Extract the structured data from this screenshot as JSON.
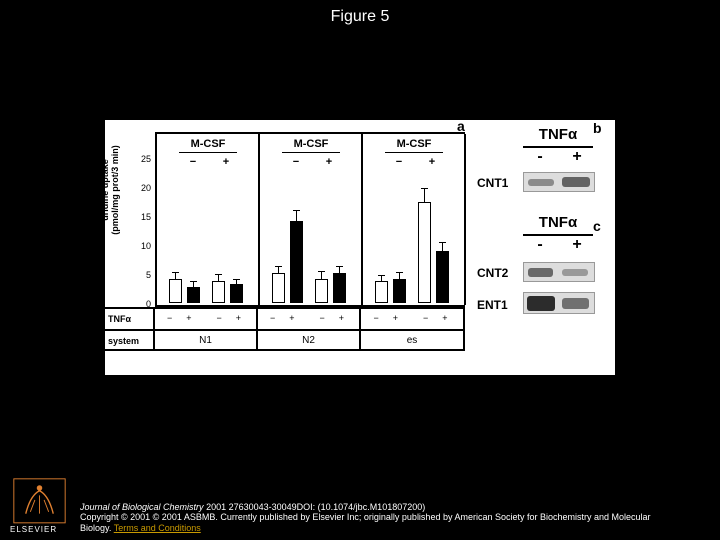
{
  "title": "Figure 5",
  "panel_a": {
    "label": "a",
    "ylabel": "uridine uptake\n(pmol/mg prot/3 min)",
    "ylim": [
      0,
      25
    ],
    "yticks": [
      0,
      5,
      10,
      15,
      20,
      25
    ],
    "groups": [
      {
        "label": "M-CSF",
        "system": "N1",
        "bars": [
          {
            "fill": "white",
            "value": 4.5,
            "err": 1.0
          },
          {
            "fill": "black",
            "value": 3.0,
            "err": 0.8
          },
          {
            "fill": "white",
            "value": 4.0,
            "err": 1.2
          },
          {
            "fill": "black",
            "value": 3.5,
            "err": 0.8
          }
        ]
      },
      {
        "label": "M-CSF",
        "system": "N2",
        "bars": [
          {
            "fill": "white",
            "value": 5.5,
            "err": 1.2
          },
          {
            "fill": "black",
            "value": 15.0,
            "err": 2.0
          },
          {
            "fill": "white",
            "value": 4.5,
            "err": 1.2
          },
          {
            "fill": "black",
            "value": 5.5,
            "err": 1.2
          }
        ]
      },
      {
        "label": "M-CSF",
        "system": "es",
        "bars": [
          {
            "fill": "white",
            "value": 4.0,
            "err": 1.0
          },
          {
            "fill": "black",
            "value": 4.5,
            "err": 1.0
          },
          {
            "fill": "white",
            "value": 18.5,
            "err": 2.5
          },
          {
            "fill": "black",
            "value": 9.5,
            "err": 1.5
          }
        ]
      }
    ],
    "tnf_row_label": "TNFα",
    "tnf_signs": [
      "−",
      "+",
      "−",
      "+",
      "−",
      "+",
      "−",
      "+",
      "−",
      "+",
      "−",
      "+"
    ],
    "system_row_label": "system",
    "mcsf_signs": [
      "−",
      "+"
    ]
  },
  "panel_b": {
    "label": "b",
    "tnf": "TNFα",
    "signs": [
      "-",
      "+"
    ],
    "row": "CNT1"
  },
  "panel_c": {
    "label": "c",
    "tnf": "TNFα",
    "signs": [
      "-",
      "+"
    ],
    "rows": [
      "CNT2",
      "ENT1"
    ]
  },
  "footer": {
    "journal": "Journal of Biological Chemistry",
    "citation": " 2001 27630043-30049DOI: (10.1074/jbc.M101807200)",
    "copyright": "Copyright © 2001 © 2001 ASBMB. Currently published by Elsevier Inc; originally published by American Society for Biochemistry and Molecular Biology. ",
    "link": "Terms and Conditions"
  },
  "logo_text": "ELSEVIER",
  "colors": {
    "bg": "#000000",
    "page": "#ffffff",
    "link": "#c99a00"
  }
}
